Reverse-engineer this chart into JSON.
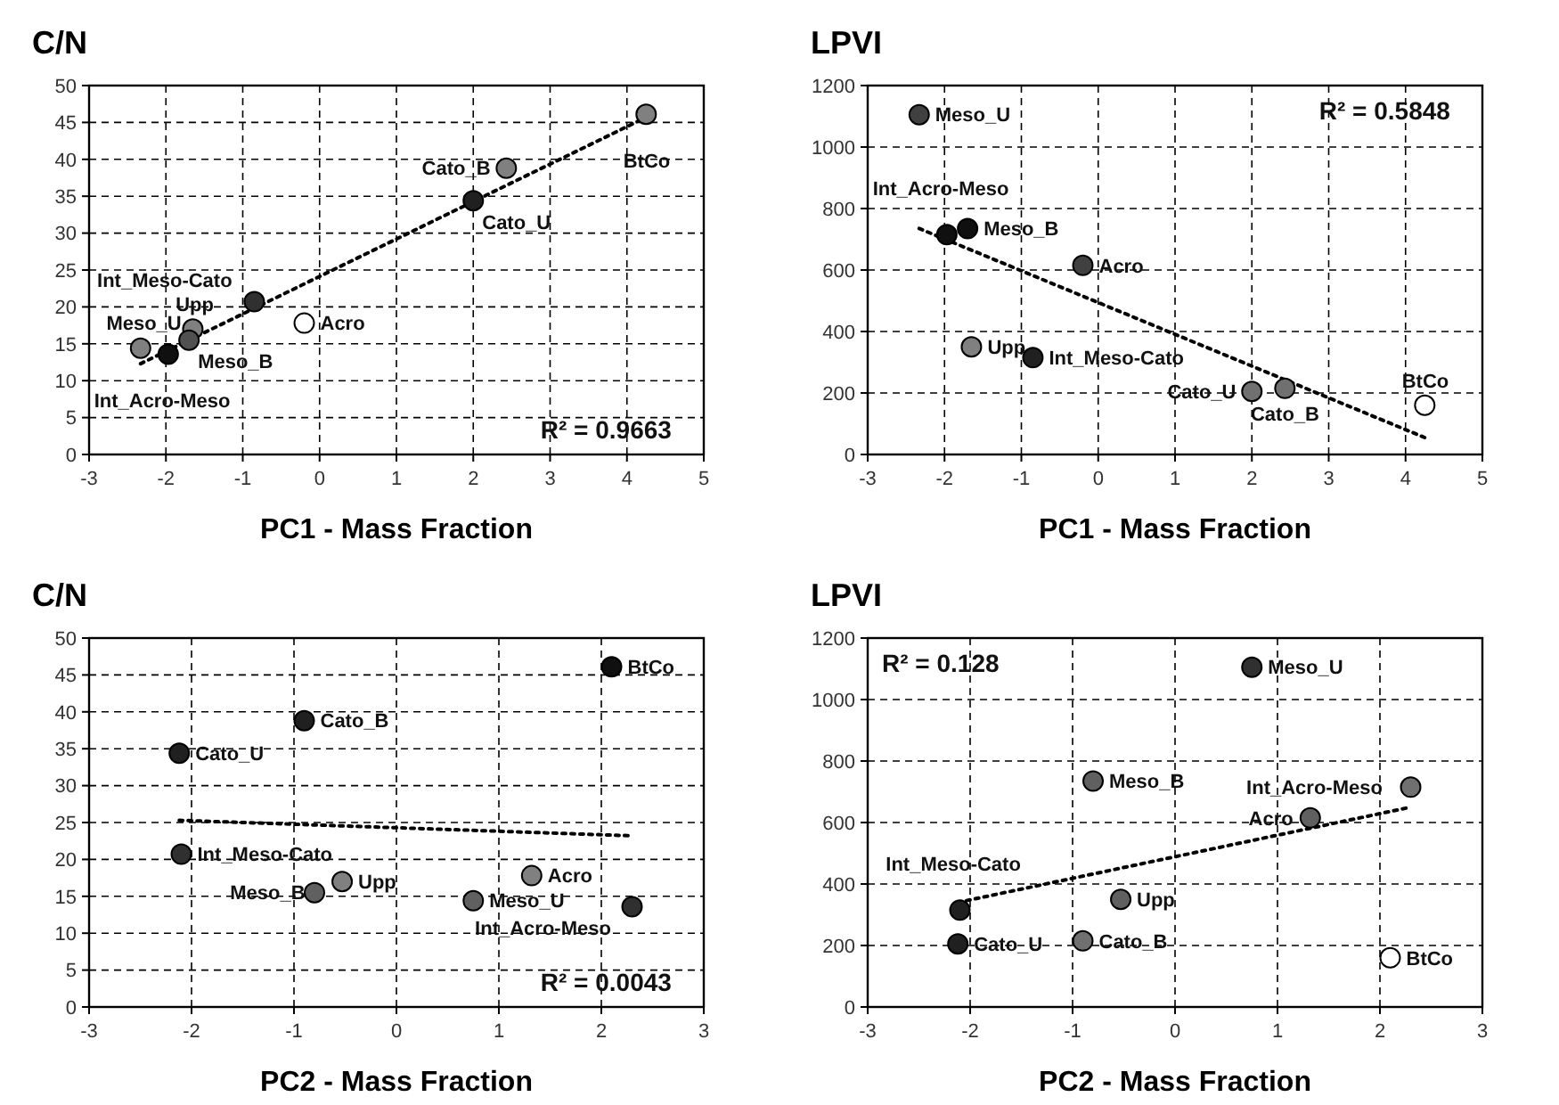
{
  "chart_data": [
    {
      "type": "scatter",
      "ylabel": "C/N",
      "xlabel": "PC1 - Mass Fraction",
      "xlim": [
        -3,
        5
      ],
      "xticks": [
        -3,
        -2,
        -1,
        0,
        1,
        2,
        3,
        4,
        5
      ],
      "ylim": [
        0,
        50
      ],
      "yticks": [
        0,
        5,
        10,
        15,
        20,
        25,
        30,
        35,
        40,
        45,
        50
      ],
      "grid": true,
      "marker": "circle",
      "series": [
        {
          "type": "line",
          "marker": "none",
          "x": [
            -2.33,
            4.25
          ],
          "values": [
            12.3,
            45.7
          ],
          "color": "#000000",
          "line_style": "dotted"
        },
        {
          "x": [
            4.25,
            2.43,
            2.0,
            -0.85,
            -0.2,
            -1.65,
            -1.7,
            -1.97,
            -2.33
          ],
          "values": [
            46.1,
            38.8,
            34.4,
            20.7,
            17.8,
            17.0,
            15.5,
            13.6,
            14.4
          ],
          "colors": [
            "#808080",
            "#808080",
            "#202020",
            "#303030",
            "#ffffff",
            "#808080",
            "#505050",
            "#101010",
            "#808080"
          ]
        }
      ],
      "annotations": [
        {
          "text": "BtCo",
          "x": 4.25,
          "y": 46.1
        },
        {
          "text": "Cato_B",
          "x": 2.43,
          "y": 38.8
        },
        {
          "text": "Cato_U",
          "x": 2.0,
          "y": 34.4
        },
        {
          "text": "Int_Meso-Cato",
          "x": -0.85,
          "y": 20.7
        },
        {
          "text": "Acro",
          "x": -0.2,
          "y": 17.8
        },
        {
          "text": "Upp",
          "x": -1.65,
          "y": 17.0
        },
        {
          "text": "Meso_B",
          "x": -1.7,
          "y": 15.5
        },
        {
          "text": "Int_Acro-Meso",
          "x": -1.97,
          "y": 13.6
        },
        {
          "text": "Meso_U",
          "x": -2.33,
          "y": 14.4
        },
        "R² = 0.9663"
      ]
    },
    {
      "type": "scatter",
      "ylabel": "LPVI",
      "xlabel": "PC1 - Mass Fraction",
      "xlim": [
        -3,
        5
      ],
      "xticks": [
        -3,
        -2,
        -1,
        0,
        1,
        2,
        3,
        4,
        5
      ],
      "ylim": [
        0,
        1200
      ],
      "yticks": [
        0,
        200,
        400,
        600,
        800,
        1000,
        1200
      ],
      "grid": true,
      "marker": "circle",
      "series": [
        {
          "type": "line",
          "marker": "none",
          "x": [
            -2.33,
            4.25
          ],
          "values": [
            735,
            55
          ],
          "color": "#000000",
          "line_style": "dotted"
        },
        {
          "x": [
            4.25,
            2.43,
            2.0,
            -0.85,
            -0.2,
            -1.65,
            -1.7,
            -1.97,
            -2.33
          ],
          "values": [
            160,
            215,
            205,
            315,
            615,
            350,
            735,
            715,
            1105
          ],
          "colors": [
            "#ffffff",
            "#707070",
            "#707070",
            "#202020",
            "#404040",
            "#808080",
            "#101010",
            "#101010",
            "#404040"
          ]
        }
      ],
      "annotations": [
        {
          "text": "BtCo",
          "x": 4.25,
          "y": 160
        },
        {
          "text": "Cato_B",
          "x": 2.43,
          "y": 215
        },
        {
          "text": "Cato_U",
          "x": 2.0,
          "y": 205
        },
        {
          "text": "Int_Meso-Cato",
          "x": -0.85,
          "y": 315
        },
        {
          "text": "Acro",
          "x": -0.2,
          "y": 615
        },
        {
          "text": "Upp",
          "x": -1.65,
          "y": 350
        },
        {
          "text": "Meso_B",
          "x": -1.7,
          "y": 735
        },
        {
          "text": "Int_Acro-Meso",
          "x": -1.97,
          "y": 715
        },
        {
          "text": "Meso_U",
          "x": -2.33,
          "y": 1105
        },
        "R² = 0.5848"
      ]
    },
    {
      "type": "scatter",
      "ylabel": "C/N",
      "xlabel": "PC2 - Mass Fraction",
      "xlim": [
        -3,
        3
      ],
      "xticks": [
        -3,
        -2,
        -1,
        0,
        1,
        2,
        3
      ],
      "ylim": [
        0,
        50
      ],
      "yticks": [
        0,
        5,
        10,
        15,
        20,
        25,
        30,
        35,
        40,
        45,
        50
      ],
      "grid": true,
      "marker": "circle",
      "series": [
        {
          "type": "line",
          "marker": "none",
          "x": [
            -2.12,
            2.3
          ],
          "values": [
            25.3,
            23.2
          ],
          "color": "#000000",
          "line_style": "dotted"
        },
        {
          "x": [
            2.1,
            -0.9,
            -2.12,
            -2.1,
            1.32,
            -0.53,
            -0.8,
            2.3,
            0.75
          ],
          "values": [
            46.1,
            38.8,
            34.4,
            20.7,
            17.8,
            17.0,
            15.5,
            13.6,
            14.4
          ],
          "colors": [
            "#101010",
            "#202020",
            "#202020",
            "#303030",
            "#808080",
            "#808080",
            "#606060",
            "#303030",
            "#606060"
          ]
        }
      ],
      "annotations": [
        {
          "text": "BtCo",
          "x": 2.1,
          "y": 46.1
        },
        {
          "text": "Cato_B",
          "x": -0.9,
          "y": 38.8
        },
        {
          "text": "Cato_U",
          "x": -2.12,
          "y": 34.4
        },
        {
          "text": "Int_Meso-Cato",
          "x": -2.1,
          "y": 20.7
        },
        {
          "text": "Acro",
          "x": 1.32,
          "y": 17.8
        },
        {
          "text": "Upp",
          "x": -0.53,
          "y": 17.0
        },
        {
          "text": "Meso_B",
          "x": -0.8,
          "y": 15.5
        },
        {
          "text": "Int_Acro-Meso",
          "x": 2.3,
          "y": 13.6
        },
        {
          "text": "Meso_U",
          "x": 0.75,
          "y": 14.4
        },
        "R² = 0.0043"
      ]
    },
    {
      "type": "scatter",
      "ylabel": "LPVI",
      "xlabel": "PC2 - Mass Fraction",
      "xlim": [
        -3,
        3
      ],
      "xticks": [
        -3,
        -2,
        -1,
        0,
        1,
        2,
        3
      ],
      "ylim": [
        0,
        1200
      ],
      "yticks": [
        0,
        200,
        400,
        600,
        800,
        1000,
        1200
      ],
      "grid": true,
      "marker": "circle",
      "series": [
        {
          "type": "line",
          "marker": "none",
          "x": [
            -2.12,
            2.3
          ],
          "values": [
            340,
            650
          ],
          "color": "#000000",
          "line_style": "dotted"
        },
        {
          "x": [
            2.1,
            -0.9,
            -2.12,
            -2.1,
            1.32,
            -0.53,
            -0.8,
            2.3,
            0.75
          ],
          "values": [
            160,
            215,
            205,
            315,
            615,
            350,
            735,
            715,
            1105
          ],
          "colors": [
            "#ffffff",
            "#707070",
            "#202020",
            "#202020",
            "#606060",
            "#606060",
            "#606060",
            "#707070",
            "#303030"
          ]
        }
      ],
      "annotations": [
        {
          "text": "BtCo",
          "x": 2.1,
          "y": 160
        },
        {
          "text": "Cato_B",
          "x": -0.9,
          "y": 215
        },
        {
          "text": "Cato_U",
          "x": -2.12,
          "y": 205
        },
        {
          "text": "Int_Meso-Cato",
          "x": -2.1,
          "y": 315
        },
        {
          "text": "Acro",
          "x": 1.32,
          "y": 615
        },
        {
          "text": "Upp",
          "x": -0.53,
          "y": 350
        },
        {
          "text": "Meso_B",
          "x": -0.8,
          "y": 735
        },
        {
          "text": "Int_Acro-Meso",
          "x": 2.3,
          "y": 715
        },
        {
          "text": "Meso_U",
          "x": 0.75,
          "y": 1105
        },
        "R² = 0.128"
      ]
    }
  ]
}
